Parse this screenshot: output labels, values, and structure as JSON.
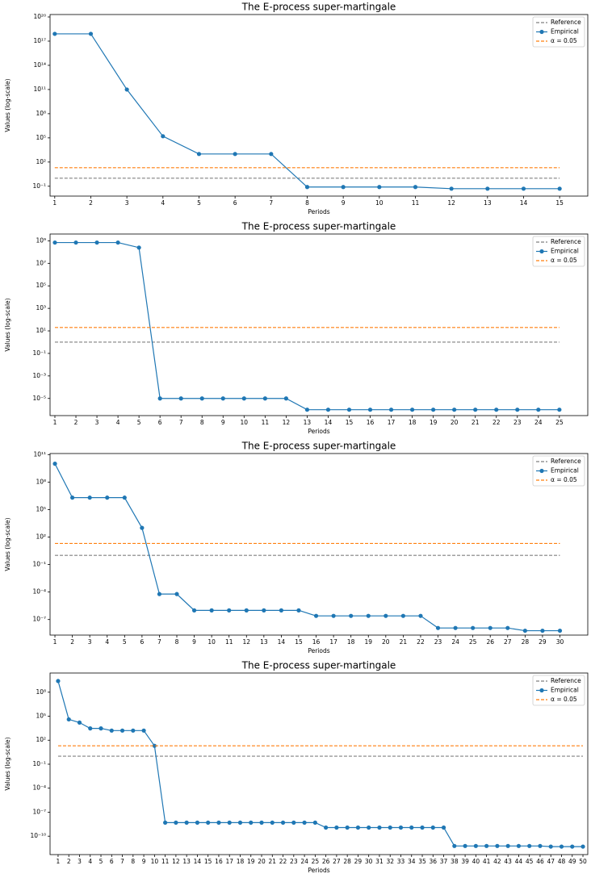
{
  "chart_data": [
    {
      "type": "line",
      "title": "The E-process super-martingale",
      "xlabel": "Periods",
      "ylabel": "Values (log-scale)",
      "log_y": true,
      "legend": "upper right",
      "x": [
        1,
        2,
        3,
        4,
        5,
        6,
        7,
        8,
        9,
        10,
        11,
        12,
        13,
        14,
        15
      ],
      "xlim": [
        0.87,
        15.78
      ],
      "xticks": [
        1,
        2,
        3,
        4,
        5,
        6,
        7,
        8,
        9,
        10,
        11,
        12,
        13,
        14,
        15
      ],
      "ylim": [
        0.006,
        2e+20
      ],
      "yticks": [
        {
          "value": 0.1,
          "label": "10⁻¹"
        },
        {
          "value": 100,
          "label": "10²"
        },
        {
          "value": 100000.0,
          "label": "10⁵"
        },
        {
          "value": 100000000.0,
          "label": "10⁸"
        },
        {
          "value": 100000000000.0,
          "label": "10¹¹"
        },
        {
          "value": 100000000000000.0,
          "label": "10¹⁴"
        },
        {
          "value": 1e+17,
          "label": "10¹⁷"
        },
        {
          "value": 1e+20,
          "label": "10²⁰"
        }
      ],
      "series": [
        {
          "name": "Reference",
          "color": "#808080",
          "value": 1,
          "dashed": true
        },
        {
          "name": "Empirical",
          "color": "#1f77b4",
          "values": [
            8e+17,
            8e+17,
            100000000000.0,
            160000.0,
            1000,
            1000,
            1000,
            0.08,
            0.08,
            0.08,
            0.08,
            0.05,
            0.05,
            0.05,
            0.05
          ]
        },
        {
          "name": "α = 0.05",
          "color": "#ff7f0e",
          "value": 20,
          "dashed": true
        }
      ]
    },
    {
      "type": "line",
      "title": "The E-process super-martingale",
      "xlabel": "Periods",
      "ylabel": "Values (log-scale)",
      "log_y": true,
      "legend": "upper right",
      "x": [
        1,
        2,
        3,
        4,
        5,
        6,
        7,
        8,
        9,
        10,
        11,
        12,
        13,
        14,
        15,
        16,
        17,
        18,
        19,
        20,
        21,
        22,
        23,
        24,
        25
      ],
      "xlim": [
        0.77,
        26.35
      ],
      "xticks": [
        1,
        2,
        3,
        4,
        5,
        6,
        7,
        8,
        9,
        10,
        11,
        12,
        13,
        14,
        15,
        16,
        17,
        18,
        19,
        20,
        21,
        22,
        23,
        24,
        25
      ],
      "ylim": [
        3e-07,
        4000000000.0
      ],
      "yticks": [
        {
          "value": 1e-05,
          "label": "10⁻⁵"
        },
        {
          "value": 0.001,
          "label": "10⁻³"
        },
        {
          "value": 0.1,
          "label": "10⁻¹"
        },
        {
          "value": 10,
          "label": "10¹"
        },
        {
          "value": 1000,
          "label": "10³"
        },
        {
          "value": 100000.0,
          "label": "10⁵"
        },
        {
          "value": 10000000.0,
          "label": "10⁷"
        },
        {
          "value": 1000000000.0,
          "label": "10⁹"
        }
      ],
      "series": [
        {
          "name": "Reference",
          "color": "#808080",
          "value": 1,
          "dashed": true
        },
        {
          "name": "Empirical",
          "color": "#1f77b4",
          "values": [
            700000000.0,
            700000000.0,
            700000000.0,
            700000000.0,
            250000000.0,
            1e-05,
            1e-05,
            1e-05,
            1e-05,
            1e-05,
            1e-05,
            1e-05,
            1e-06,
            1e-06,
            1e-06,
            1e-06,
            1e-06,
            1e-06,
            1e-06,
            1e-06,
            1e-06,
            1e-06,
            1e-06,
            1e-06,
            1e-06
          ]
        },
        {
          "name": "α = 0.05",
          "color": "#ff7f0e",
          "value": 20,
          "dashed": true
        }
      ]
    },
    {
      "type": "line",
      "title": "The E-process super-martingale",
      "xlabel": "Periods",
      "ylabel": "Values (log-scale)",
      "log_y": true,
      "legend": "upper right",
      "x": [
        1,
        2,
        3,
        4,
        5,
        6,
        7,
        8,
        9,
        10,
        11,
        12,
        13,
        14,
        15,
        16,
        17,
        18,
        19,
        20,
        21,
        22,
        23,
        24,
        25,
        26,
        27,
        28,
        29,
        30
      ],
      "xlim": [
        0.72,
        31.6
      ],
      "xticks": [
        1,
        2,
        3,
        4,
        5,
        6,
        7,
        8,
        9,
        10,
        11,
        12,
        13,
        14,
        15,
        16,
        17,
        18,
        19,
        20,
        21,
        22,
        23,
        24,
        25,
        26,
        27,
        28,
        29,
        30
      ],
      "ylim": [
        2e-09,
        130000000000.0
      ],
      "yticks": [
        {
          "value": 1e-07,
          "label": "10⁻⁷"
        },
        {
          "value": 0.0001,
          "label": "10⁻⁴"
        },
        {
          "value": 0.1,
          "label": "10⁻¹"
        },
        {
          "value": 100,
          "label": "10²"
        },
        {
          "value": 100000.0,
          "label": "10⁵"
        },
        {
          "value": 100000000.0,
          "label": "10⁸"
        },
        {
          "value": 100000000000.0,
          "label": "10¹¹"
        }
      ],
      "series": [
        {
          "name": "Reference",
          "color": "#808080",
          "value": 1,
          "dashed": true
        },
        {
          "name": "Empirical",
          "color": "#1f77b4",
          "values": [
            10000000000.0,
            2000000.0,
            2000000.0,
            2000000.0,
            2000000.0,
            1000,
            6e-05,
            6e-05,
            1e-06,
            1e-06,
            1e-06,
            1e-06,
            1e-06,
            1e-06,
            1e-06,
            2.5e-07,
            2.5e-07,
            2.5e-07,
            2.5e-07,
            2.5e-07,
            2.5e-07,
            2.5e-07,
            1.2e-08,
            1.2e-08,
            1.2e-08,
            1.2e-08,
            1.2e-08,
            6e-09,
            6e-09,
            6e-09
          ]
        },
        {
          "name": "α = 0.05",
          "color": "#ff7f0e",
          "value": 20,
          "dashed": true
        }
      ]
    },
    {
      "type": "line",
      "title": "The E-process super-martingale",
      "xlabel": "Periods",
      "ylabel": "Values (log-scale)",
      "log_y": true,
      "legend": "upper right",
      "x": [
        1,
        2,
        3,
        4,
        5,
        6,
        7,
        8,
        9,
        10,
        11,
        12,
        13,
        14,
        15,
        16,
        17,
        18,
        19,
        20,
        21,
        22,
        23,
        24,
        25,
        26,
        27,
        28,
        29,
        30,
        31,
        32,
        33,
        34,
        35,
        36,
        37,
        38,
        39,
        40,
        41,
        42,
        43,
        44,
        45,
        46,
        47,
        48,
        49,
        50
      ],
      "xlim": [
        0.25,
        50.45
      ],
      "xticks": [
        1,
        2,
        3,
        4,
        5,
        6,
        7,
        8,
        9,
        10,
        11,
        12,
        13,
        14,
        15,
        16,
        17,
        18,
        19,
        20,
        21,
        22,
        23,
        24,
        25,
        26,
        27,
        28,
        29,
        30,
        31,
        32,
        33,
        34,
        35,
        36,
        37,
        38,
        39,
        40,
        41,
        42,
        43,
        44,
        45,
        46,
        47,
        48,
        49,
        50
      ],
      "ylim": [
        5e-13,
        25000000000.0
      ],
      "yticks": [
        {
          "value": 1e-10,
          "label": "10⁻¹⁰"
        },
        {
          "value": 1e-07,
          "label": "10⁻⁷"
        },
        {
          "value": 0.0001,
          "label": "10⁻⁴"
        },
        {
          "value": 0.1,
          "label": "10⁻¹"
        },
        {
          "value": 100,
          "label": "10²"
        },
        {
          "value": 100000.0,
          "label": "10⁵"
        },
        {
          "value": 100000000.0,
          "label": "10⁸"
        }
      ],
      "series": [
        {
          "name": "Reference",
          "color": "#808080",
          "value": 1,
          "dashed": true
        },
        {
          "name": "Empirical",
          "color": "#1f77b4",
          "values": [
            2500000000.0,
            40000.0,
            16000.0,
            3000,
            3000,
            1600,
            1600,
            1600,
            1600,
            20,
            5e-09,
            5e-09,
            5e-09,
            5e-09,
            5e-09,
            5e-09,
            5e-09,
            5e-09,
            5e-09,
            5e-09,
            5e-09,
            5e-09,
            5e-09,
            5e-09,
            5e-09,
            1.2e-09,
            1.2e-09,
            1.2e-09,
            1.2e-09,
            1.2e-09,
            1.2e-09,
            1.2e-09,
            1.2e-09,
            1.2e-09,
            1.2e-09,
            1.2e-09,
            1.2e-09,
            6e-12,
            6e-12,
            6e-12,
            6e-12,
            6e-12,
            6e-12,
            6e-12,
            6e-12,
            6e-12,
            5e-12,
            5e-12,
            5e-12,
            5e-12
          ]
        },
        {
          "name": "α = 0.05",
          "color": "#ff7f0e",
          "value": 20,
          "dashed": true
        }
      ]
    }
  ]
}
